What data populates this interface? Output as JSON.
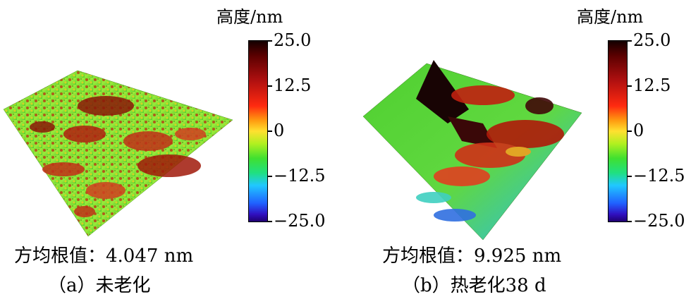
{
  "panels": [
    {
      "colorbar_title": "高度/nm",
      "ticks": [
        "25.0",
        "12.5",
        "0",
        "−12.5",
        "−25.0"
      ],
      "rms": "方均根值：4.047 nm",
      "caption": "（a）未老化"
    },
    {
      "colorbar_title": "高度/nm",
      "ticks": [
        "25.0",
        "12.5",
        "0",
        "−12.5",
        "−25.0"
      ],
      "rms": "方均根值：9.925 nm",
      "caption": "（b）热老化38 d"
    }
  ],
  "colors": {
    "colorbar_top": "#140000",
    "colorbar_red": "#ff2a10",
    "colorbar_zero": "#ffe030",
    "colorbar_green": "#40e030",
    "colorbar_cyan": "#20c8ff",
    "colorbar_bottom": "#200070"
  }
}
